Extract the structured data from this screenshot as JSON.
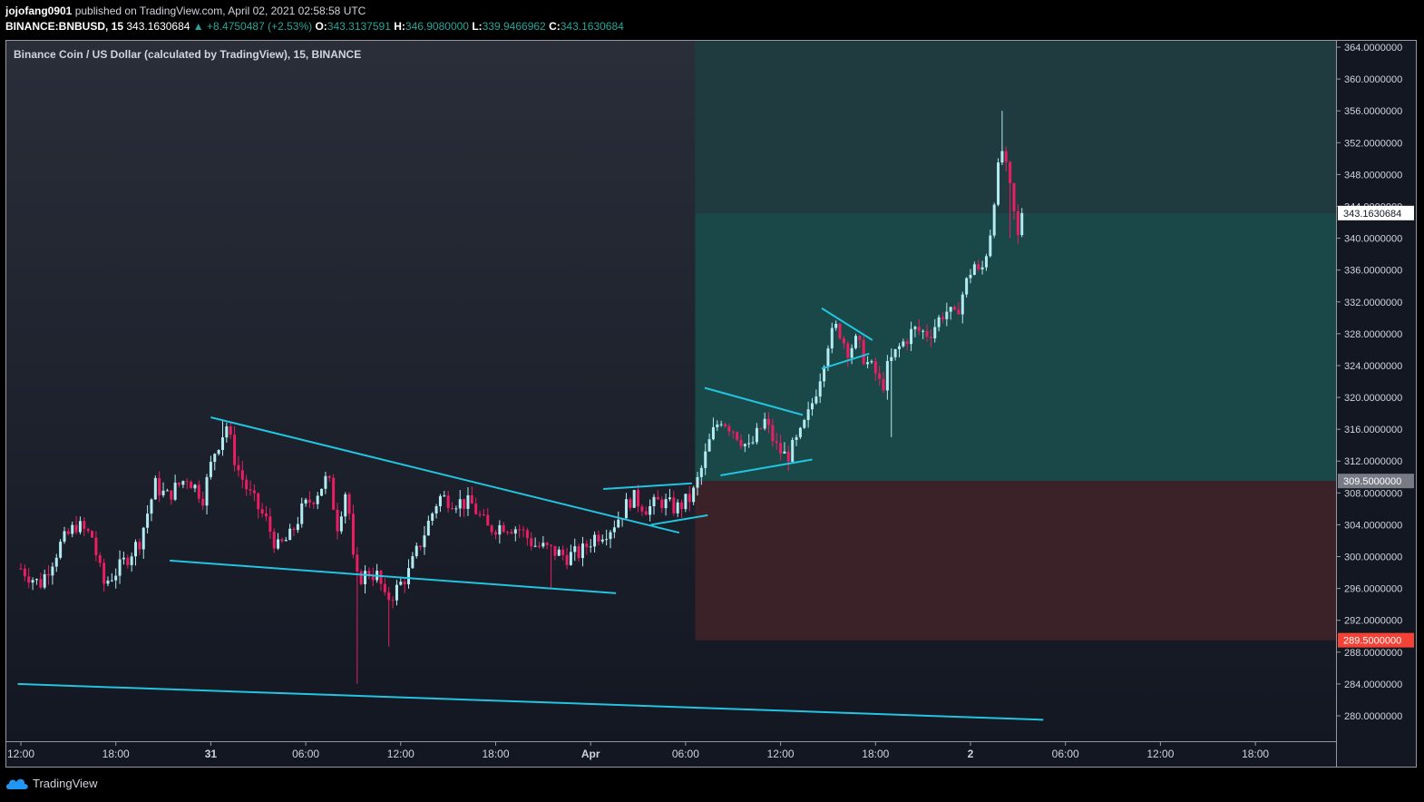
{
  "header": {
    "author": "jojofang0901",
    "published_text": "published on TradingView.com, April 02, 2021 02:58:58 UTC",
    "symbol": "BINANCE:BNBUSD, 15",
    "last": "343.1630684",
    "change": "+8.4750487 (+2.53%)",
    "o_label": "O:",
    "o_value": "343.3137591",
    "h_label": "H:",
    "h_value": "346.9080000",
    "l_label": "L:",
    "l_value": "339.9466962",
    "c_label": "C:",
    "c_value": "343.1630684"
  },
  "footer": {
    "brand": "TradingView"
  },
  "colors": {
    "up": "#26a69a",
    "down": "#e91e63",
    "upcandle": "#b2ebf2",
    "trendline": "#22c4e0",
    "target_zone": "#1a4747",
    "stop_zone": "#3b2128"
  },
  "chart_data": {
    "type": "candlestick",
    "title": "Binance Coin / US Dollar (calculated by TradingView), 15, BINANCE",
    "y_axis": {
      "range": [
        276,
        366
      ],
      "ticks": [
        "364.0000000",
        "360.0000000",
        "356.0000000",
        "352.0000000",
        "348.0000000",
        "344.0000000",
        "340.0000000",
        "336.0000000",
        "332.0000000",
        "328.0000000",
        "324.0000000",
        "320.0000000",
        "316.0000000",
        "312.0000000",
        "308.0000000",
        "304.0000000",
        "300.0000000",
        "296.0000000",
        "292.0000000",
        "288.0000000",
        "284.0000000",
        "280.0000000"
      ],
      "labels": [
        {
          "text": "343.1630684",
          "value": 343.163,
          "style": "price"
        },
        {
          "text": "309.5000000",
          "value": 309.5,
          "style": "entry"
        },
        {
          "text": "289.5000000",
          "value": 289.5,
          "style": "stop"
        }
      ]
    },
    "x_axis": {
      "ticks": [
        {
          "label": "12:00",
          "hours": 0
        },
        {
          "label": "18:00",
          "hours": 6
        },
        {
          "label": "31",
          "hours": 12,
          "bold": true
        },
        {
          "label": "06:00",
          "hours": 18
        },
        {
          "label": "12:00",
          "hours": 24
        },
        {
          "label": "18:00",
          "hours": 30
        },
        {
          "label": "Apr",
          "hours": 36,
          "bold": true
        },
        {
          "label": "06:00",
          "hours": 42
        },
        {
          "label": "12:00",
          "hours": 48
        },
        {
          "label": "18:00",
          "hours": 54
        },
        {
          "label": "2",
          "hours": 60,
          "bold": true
        },
        {
          "label": "06:00",
          "hours": 66
        },
        {
          "label": "12:00",
          "hours": 72
        },
        {
          "label": "18:00",
          "hours": 78
        }
      ]
    },
    "position": {
      "entry": 309.5,
      "target": 343.163,
      "stop": 289.5,
      "start_hours": 42.6,
      "target_top": 366
    },
    "trendlines": [
      {
        "from": [
          12,
          317.5
        ],
        "to": [
          41.6,
          303.0
        ]
      },
      {
        "from": [
          9.4,
          299.5
        ],
        "to": [
          37.6,
          295.4
        ]
      },
      {
        "from": [
          36.8,
          308.5
        ],
        "to": [
          42.4,
          309.2
        ]
      },
      {
        "from": [
          39.8,
          304.0
        ],
        "to": [
          43.4,
          305.2
        ]
      },
      {
        "from": [
          43.2,
          321.2
        ],
        "to": [
          49.4,
          317.8
        ]
      },
      {
        "from": [
          44.2,
          310.2
        ],
        "to": [
          50.0,
          312.2
        ]
      },
      {
        "from": [
          50.6,
          331.2
        ],
        "to": [
          53.8,
          327.2
        ]
      },
      {
        "from": [
          50.6,
          323.6
        ],
        "to": [
          53.6,
          325.5
        ]
      },
      {
        "from": [
          -0.2,
          284.0
        ],
        "to": [
          64.6,
          279.5
        ]
      }
    ],
    "series": [
      {
        "name": "BNBUSD",
        "anchors": [
          [
            0,
            298.5
          ],
          [
            1.2,
            296.5
          ],
          [
            2.5,
            301.5
          ],
          [
            3.5,
            304
          ],
          [
            4.5,
            302.5
          ],
          [
            5.2,
            296.5
          ],
          [
            6.2,
            298.5
          ],
          [
            7.5,
            302
          ],
          [
            8.5,
            309
          ],
          [
            9.2,
            307.5
          ],
          [
            10.5,
            310
          ],
          [
            11.5,
            307.5
          ],
          [
            12.2,
            313
          ],
          [
            13.0,
            316.5
          ],
          [
            13.6,
            311.5
          ],
          [
            14.4,
            308
          ],
          [
            15.5,
            304.5
          ],
          [
            16.2,
            301
          ],
          [
            17.0,
            302.5
          ],
          [
            17.8,
            306
          ],
          [
            18.5,
            307.5
          ],
          [
            19.4,
            310
          ],
          [
            20.0,
            304
          ],
          [
            20.6,
            309
          ],
          [
            21.1,
            297
          ],
          [
            22.0,
            298
          ],
          [
            22.6,
            297.5
          ],
          [
            23.0,
            294.5
          ],
          [
            23.6,
            295.5
          ],
          [
            24.5,
            298
          ],
          [
            25.5,
            303
          ],
          [
            26.4,
            307.5
          ],
          [
            27.4,
            307
          ],
          [
            28.5,
            306.5
          ],
          [
            29.5,
            303.5
          ],
          [
            30.5,
            304
          ],
          [
            31.5,
            303.5
          ],
          [
            32.4,
            301.5
          ],
          [
            33.2,
            301
          ],
          [
            34.5,
            300
          ],
          [
            35.4,
            300.5
          ],
          [
            36.2,
            302.5
          ],
          [
            37.2,
            303.5
          ],
          [
            37.8,
            305
          ],
          [
            38.6,
            307.5
          ],
          [
            39.6,
            306
          ],
          [
            40.4,
            307
          ],
          [
            41.4,
            306
          ],
          [
            42.4,
            307.5
          ],
          [
            43.0,
            311
          ],
          [
            43.6,
            315
          ],
          [
            44.2,
            317.5
          ],
          [
            45.0,
            316
          ],
          [
            46.0,
            313.5
          ],
          [
            47.0,
            317
          ],
          [
            47.8,
            313.5
          ],
          [
            48.4,
            312.5
          ],
          [
            49.2,
            315
          ],
          [
            49.8,
            318
          ],
          [
            50.4,
            322
          ],
          [
            51.0,
            327
          ],
          [
            51.6,
            329
          ],
          [
            52.2,
            326
          ],
          [
            52.8,
            327
          ],
          [
            53.4,
            324.5
          ],
          [
            54.0,
            323
          ],
          [
            54.4,
            321
          ],
          [
            54.8,
            324
          ],
          [
            55.4,
            326
          ],
          [
            56.4,
            328.5
          ],
          [
            57.4,
            328
          ],
          [
            58.4,
            331
          ],
          [
            59.0,
            330
          ],
          [
            59.5,
            333
          ],
          [
            60.2,
            337
          ],
          [
            60.6,
            335
          ],
          [
            61.2,
            340
          ],
          [
            61.6,
            347
          ],
          [
            62.0,
            351
          ],
          [
            62.5,
            346
          ],
          [
            63.0,
            340
          ],
          [
            63.4,
            343.16
          ]
        ],
        "spikes": [
          [
            12.8,
            317.2,
            "high"
          ],
          [
            21.2,
            284,
            "low"
          ],
          [
            23.3,
            288.7,
            "low"
          ],
          [
            33.6,
            296,
            "low"
          ],
          [
            62.0,
            356,
            "high"
          ],
          [
            62.6,
            340,
            "low"
          ],
          [
            55.0,
            315,
            "low"
          ]
        ]
      }
    ]
  }
}
